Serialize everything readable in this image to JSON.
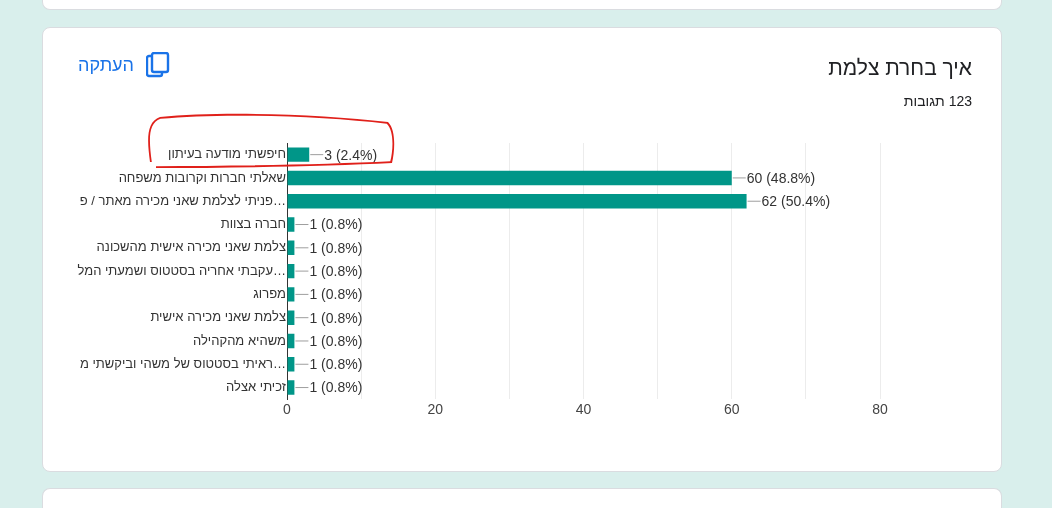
{
  "chart_data": {
    "type": "bar",
    "orientation": "horizontal",
    "title": "איך בחרת צלמת",
    "subtitle": "123 תגובות",
    "categories": [
      "חיפשתי מודעה בעיתון",
      "שאלתי חברות וקרובות משפחה",
      "פניתי לצלמת שאני מכירה מאתר / פ…",
      "חברה בצוות",
      "צלמת שאני מכירה אישית מהשכונה",
      "עקבתי אחריה בסטטוס ושמעתי המל…",
      "מפרוג",
      "צלמת שאני מכירה אישית",
      "משהיא מהקהילה",
      "ראיתי בסטטוס של משהי וביקשתי מ…",
      "זכיתי אצלה"
    ],
    "values": [
      3,
      60,
      62,
      1,
      1,
      1,
      1,
      1,
      1,
      1,
      1
    ],
    "value_labels": [
      "3 (2.4%)",
      "60 (48.8%)",
      "62 (50.4%)",
      "1 (0.8%)",
      "1 (0.8%)",
      "1 (0.8%)",
      "1 (0.8%)",
      "1 (0.8%)",
      "1 (0.8%)",
      "1 (0.8%)",
      "1 (0.8%)"
    ],
    "color": "#009688",
    "xlim": [
      0,
      80
    ],
    "xticks": [
      0,
      {
        "value": 10,
        "label": null
      },
      20,
      {
        "value": 30,
        "label": null
      },
      40,
      {
        "value": 50,
        "label": null
      },
      60,
      {
        "value": 70,
        "label": null
      },
      80
    ],
    "grid": "x",
    "annotations": [
      "העתקה"
    ]
  }
}
